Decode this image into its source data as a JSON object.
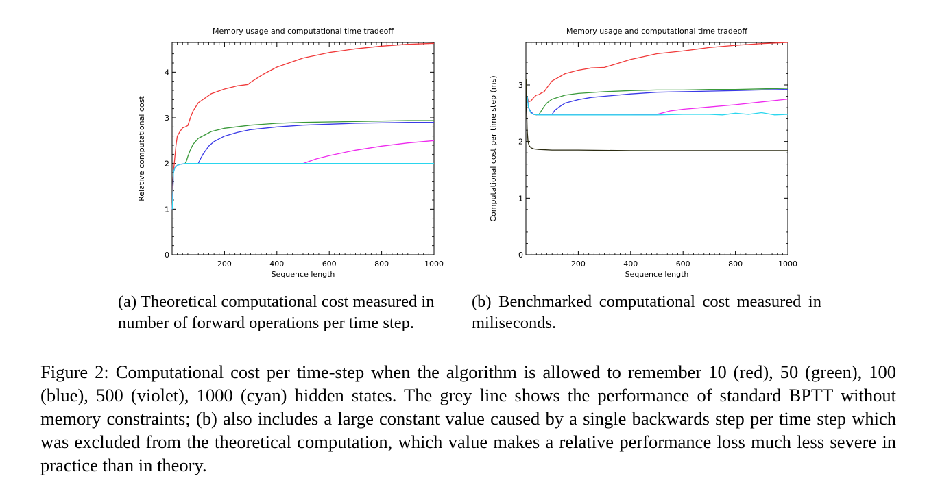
{
  "chart_data": [
    {
      "type": "line",
      "title": "Memory usage and computational time tradeoff",
      "xlabel": "Sequence length",
      "ylabel": "Relative computational cost",
      "xlim": [
        0,
        1000
      ],
      "ylim": [
        0,
        4.65
      ],
      "xticks": [
        200,
        400,
        600,
        800,
        1000
      ],
      "yticks": [
        0,
        1,
        2,
        3,
        4
      ],
      "grid": false,
      "colors": [
        "#f03a3a",
        "#3a993a",
        "#3a3ae6",
        "#ee2aee",
        "#2ad6ee"
      ],
      "series": [
        {
          "x": [
            1,
            2,
            5,
            10,
            15,
            20,
            30,
            40,
            50,
            60,
            70,
            80,
            100,
            150,
            200,
            250,
            290,
            300,
            350,
            400,
            500,
            600,
            700,
            800,
            900,
            1000
          ],
          "y": [
            1.0,
            1.5,
            1.8,
            2.1,
            2.4,
            2.6,
            2.7,
            2.78,
            2.8,
            2.83,
            3.0,
            3.15,
            3.33,
            3.53,
            3.63,
            3.7,
            3.73,
            3.78,
            3.96,
            4.11,
            4.31,
            4.43,
            4.51,
            4.57,
            4.61,
            4.63
          ]
        },
        {
          "x": [
            1,
            5,
            10,
            20,
            30,
            50,
            55,
            60,
            70,
            80,
            100,
            150,
            200,
            300,
            400,
            500,
            600,
            700,
            800,
            900,
            1000
          ],
          "y": [
            1.0,
            1.8,
            1.9,
            1.96,
            1.98,
            2.0,
            2.06,
            2.15,
            2.3,
            2.42,
            2.55,
            2.7,
            2.77,
            2.84,
            2.88,
            2.9,
            2.91,
            2.92,
            2.93,
            2.94,
            2.94
          ]
        },
        {
          "x": [
            1,
            5,
            10,
            20,
            30,
            50,
            100,
            110,
            120,
            140,
            160,
            200,
            250,
            300,
            400,
            500,
            600,
            700,
            800,
            900,
            1000
          ],
          "y": [
            1.0,
            1.8,
            1.9,
            1.96,
            1.98,
            2.0,
            2.0,
            2.12,
            2.22,
            2.38,
            2.48,
            2.6,
            2.68,
            2.74,
            2.8,
            2.84,
            2.86,
            2.88,
            2.89,
            2.9,
            2.9
          ]
        },
        {
          "x": [
            1,
            5,
            10,
            20,
            30,
            50,
            100,
            200,
            300,
            400,
            500,
            550,
            600,
            700,
            800,
            900,
            1000
          ],
          "y": [
            1.0,
            1.8,
            1.9,
            1.96,
            1.98,
            2.0,
            2.0,
            2.0,
            2.0,
            2.0,
            2.0,
            2.1,
            2.17,
            2.29,
            2.38,
            2.45,
            2.5
          ]
        },
        {
          "x": [
            1,
            5,
            10,
            20,
            30,
            50,
            100,
            200,
            400,
            600,
            800,
            1000
          ],
          "y": [
            1.0,
            1.8,
            1.9,
            1.96,
            1.98,
            2.0,
            2.0,
            2.0,
            2.0,
            2.0,
            2.0,
            2.0
          ]
        }
      ]
    },
    {
      "type": "line",
      "title": "Memory usage and computational time tradeoff",
      "xlabel": "Sequence length",
      "ylabel": "Computational cost per time step (ms)",
      "xlim": [
        0,
        1000
      ],
      "ylim": [
        0,
        3.75
      ],
      "xticks": [
        200,
        400,
        600,
        800,
        1000
      ],
      "yticks": [
        0,
        1,
        2,
        3
      ],
      "grid": false,
      "colors": [
        "#f03a3a",
        "#3a993a",
        "#3a3ae6",
        "#ee2aee",
        "#2ad6ee",
        "#2a2a10"
      ],
      "series": [
        {
          "x": [
            5,
            10,
            20,
            30,
            40,
            50,
            60,
            70,
            80,
            100,
            150,
            200,
            250,
            300,
            350,
            400,
            500,
            600,
            700,
            800,
            900,
            1000
          ],
          "y": [
            2.8,
            2.7,
            2.72,
            2.78,
            2.82,
            2.83,
            2.86,
            2.88,
            2.95,
            3.07,
            3.2,
            3.26,
            3.3,
            3.31,
            3.38,
            3.45,
            3.55,
            3.6,
            3.66,
            3.7,
            3.73,
            3.75
          ]
        },
        {
          "x": [
            5,
            10,
            20,
            30,
            40,
            50,
            60,
            70,
            80,
            100,
            150,
            200,
            300,
            400,
            500,
            600,
            700,
            800,
            900,
            1000
          ],
          "y": [
            2.8,
            2.6,
            2.5,
            2.48,
            2.47,
            2.48,
            2.55,
            2.62,
            2.68,
            2.75,
            2.82,
            2.85,
            2.88,
            2.9,
            2.91,
            2.91,
            2.92,
            2.92,
            2.93,
            2.94
          ]
        },
        {
          "x": [
            5,
            10,
            20,
            30,
            50,
            100,
            110,
            130,
            150,
            200,
            250,
            300,
            400,
            500,
            600,
            700,
            800,
            900,
            1000
          ],
          "y": [
            2.8,
            2.6,
            2.52,
            2.48,
            2.47,
            2.48,
            2.55,
            2.62,
            2.68,
            2.74,
            2.78,
            2.8,
            2.84,
            2.87,
            2.88,
            2.89,
            2.9,
            2.91,
            2.92
          ]
        },
        {
          "x": [
            5,
            10,
            20,
            30,
            50,
            100,
            200,
            300,
            400,
            500,
            550,
            600,
            700,
            800,
            900,
            1000
          ],
          "y": [
            2.8,
            2.6,
            2.5,
            2.48,
            2.47,
            2.47,
            2.47,
            2.47,
            2.47,
            2.48,
            2.54,
            2.57,
            2.61,
            2.65,
            2.7,
            2.75
          ]
        },
        {
          "x": [
            5,
            10,
            20,
            30,
            50,
            100,
            200,
            300,
            400,
            500,
            600,
            700,
            750,
            800,
            850,
            900,
            950,
            1000
          ],
          "y": [
            2.8,
            2.6,
            2.5,
            2.48,
            2.47,
            2.47,
            2.47,
            2.47,
            2.47,
            2.47,
            2.48,
            2.48,
            2.47,
            2.5,
            2.48,
            2.51,
            2.47,
            2.48
          ]
        },
        {
          "x": [
            1,
            3,
            5,
            8,
            12,
            20,
            30,
            50,
            100,
            200,
            400,
            600,
            800,
            1000
          ],
          "y": [
            3.1,
            2.6,
            2.2,
            2.0,
            1.93,
            1.89,
            1.87,
            1.86,
            1.85,
            1.85,
            1.84,
            1.84,
            1.84,
            1.84
          ]
        }
      ]
    }
  ],
  "subcaptions": {
    "a": "(a) Theoretical computational cost measured in number of forward operations per time step.",
    "b": "(b) Benchmarked computational cost measured in miliseconds."
  },
  "figure_caption": "Figure 2: Computational cost per time-step when the algorithm is allowed to remember 10 (red), 50 (green), 100 (blue), 500 (violet), 1000 (cyan) hidden states. The grey line shows the performance of standard BPTT without memory constraints; (b) also includes a large constant value caused by a single backwards step per time step which was excluded from the theoretical computation, which value makes a relative performance loss much less severe in practice than in theory."
}
